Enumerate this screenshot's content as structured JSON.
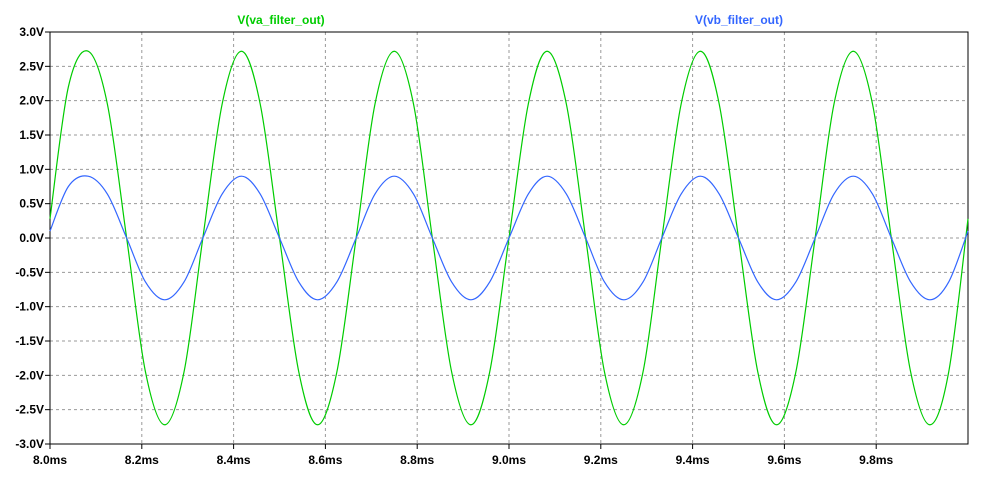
{
  "chart_data": {
    "type": "line",
    "title": "",
    "xlabel": "",
    "ylabel": "",
    "xlim": [
      8.0,
      10.0
    ],
    "ylim": [
      -3.0,
      3.0
    ],
    "grid": true,
    "legend_placement": "top",
    "x_ticks": [
      8.0,
      8.2,
      8.4,
      8.6,
      8.8,
      9.0,
      9.2,
      9.4,
      9.6,
      9.8
    ],
    "x_tick_labels": [
      "8.0ms",
      "8.2ms",
      "8.4ms",
      "8.6ms",
      "8.8ms",
      "9.0ms",
      "9.2ms",
      "9.4ms",
      "9.6ms",
      "9.8ms"
    ],
    "y_ticks": [
      3.0,
      2.5,
      2.0,
      1.5,
      1.0,
      0.5,
      0.0,
      -0.5,
      -1.0,
      -1.5,
      -2.0,
      -2.5,
      -3.0
    ],
    "y_tick_labels": [
      "3.0V",
      "2.5V",
      "2.0V",
      "1.5V",
      "1.0V",
      "0.5V",
      "0.0V",
      "-0.5V",
      "-1.0V",
      "-1.5V",
      "-2.0V",
      "-2.5V",
      "-3.0V"
    ],
    "x_unit": "ms",
    "series": [
      {
        "name": "V(va_filter_out)",
        "color": "#00cc00",
        "x": [
          8.0,
          8.04,
          8.083,
          8.125,
          8.167,
          8.208,
          8.25,
          8.292,
          8.333,
          8.375,
          8.417,
          8.458,
          8.5,
          8.542,
          8.583,
          8.625,
          8.667,
          8.708,
          8.75,
          8.792,
          8.833,
          8.875,
          8.917,
          8.958,
          9.0,
          9.042,
          9.083,
          9.125,
          9.167,
          9.208,
          9.25,
          9.292,
          9.333,
          9.375,
          9.417,
          9.458,
          9.5,
          9.542,
          9.583,
          9.625,
          9.667,
          9.708,
          9.75,
          9.792,
          9.833,
          9.875,
          9.917,
          9.958,
          10.0
        ],
        "y": [
          0.28,
          2.2,
          2.72,
          1.95,
          0.0,
          -1.95,
          -2.72,
          -1.95,
          0.0,
          1.95,
          2.72,
          1.95,
          0.0,
          -1.95,
          -2.72,
          -1.95,
          0.0,
          1.95,
          2.72,
          1.95,
          0.0,
          -1.95,
          -2.72,
          -1.95,
          0.0,
          1.95,
          2.72,
          1.95,
          0.0,
          -1.95,
          -2.72,
          -1.95,
          0.0,
          1.95,
          2.72,
          1.95,
          0.0,
          -1.95,
          -2.72,
          -1.95,
          0.0,
          1.95,
          2.72,
          1.95,
          0.0,
          -1.95,
          -2.72,
          -1.95,
          0.28
        ]
      },
      {
        "name": "V(vb_filter_out)",
        "color": "#3366ff",
        "x": [
          8.0,
          8.04,
          8.083,
          8.125,
          8.167,
          8.208,
          8.25,
          8.292,
          8.333,
          8.375,
          8.417,
          8.458,
          8.5,
          8.542,
          8.583,
          8.625,
          8.667,
          8.708,
          8.75,
          8.792,
          8.833,
          8.875,
          8.917,
          8.958,
          9.0,
          9.042,
          9.083,
          9.125,
          9.167,
          9.208,
          9.25,
          9.292,
          9.333,
          9.375,
          9.417,
          9.458,
          9.5,
          9.542,
          9.583,
          9.625,
          9.667,
          9.708,
          9.75,
          9.792,
          9.833,
          9.875,
          9.917,
          9.958,
          10.0
        ],
        "y": [
          0.1,
          0.75,
          0.9,
          0.64,
          0.0,
          -0.64,
          -0.9,
          -0.64,
          0.0,
          0.64,
          0.9,
          0.64,
          0.0,
          -0.64,
          -0.9,
          -0.64,
          0.0,
          0.64,
          0.9,
          0.64,
          0.0,
          -0.64,
          -0.9,
          -0.64,
          0.0,
          0.64,
          0.9,
          0.64,
          0.0,
          -0.64,
          -0.9,
          -0.64,
          0.0,
          0.64,
          0.9,
          0.64,
          0.0,
          -0.64,
          -0.9,
          -0.64,
          0.0,
          0.64,
          0.9,
          0.64,
          0.0,
          -0.64,
          -0.9,
          -0.64,
          0.1
        ]
      }
    ]
  }
}
